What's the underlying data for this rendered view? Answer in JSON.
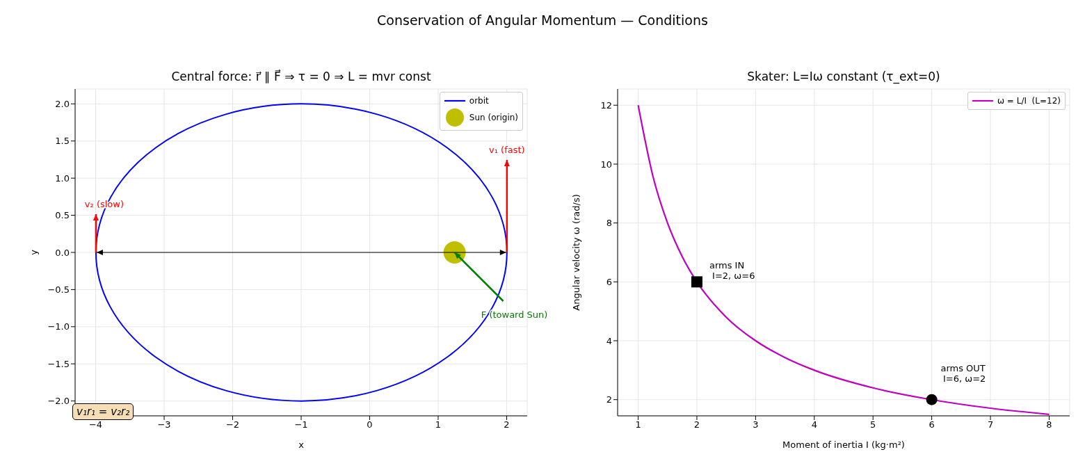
{
  "chart_data": [
    {
      "type": "other",
      "title": "Conservation of Angular Momentum — Conditions"
    },
    {
      "type": "line",
      "title": "Central force: r⃗ ∥ F⃗ ⇒ τ = 0 ⇒ L = mvr const",
      "xlabel": "x",
      "ylabel": "y",
      "xlim": [
        -4.3,
        2.3
      ],
      "ylim": [
        -2.2,
        2.2
      ],
      "xticks": [
        {
          "value": -4,
          "label": "−4"
        },
        {
          "value": -3,
          "label": "−3"
        },
        {
          "value": -2,
          "label": "−2"
        },
        {
          "value": -1,
          "label": "−1"
        },
        0,
        1,
        2
      ],
      "yticks": [
        {
          "value": -2,
          "label": "−2.0"
        },
        {
          "value": -1.5,
          "label": "−1.5"
        },
        {
          "value": -1,
          "label": "−1.0"
        },
        {
          "value": -0.5,
          "label": "−0.5"
        },
        {
          "value": 0,
          "label": "0.0"
        },
        {
          "value": 0.5,
          "label": "0.5"
        },
        {
          "value": 1,
          "label": "1.0"
        },
        {
          "value": 1.5,
          "label": "1.5"
        },
        {
          "value": 2,
          "label": "2.0"
        }
      ],
      "grid": true,
      "legend": "top right",
      "series": [
        {
          "name": "orbit",
          "type": "line",
          "color": "#0000ff"
        },
        {
          "name": "Sun (origin)",
          "type": "scatter",
          "color": "#bfbf00",
          "marker": "circle",
          "x": [
            1.24
          ],
          "values": [
            0
          ]
        }
      ],
      "annotations": [
        "v₁r₁ = v₂r₂",
        "v₁ (fast)",
        "v₂ (slow)",
        {
          "text": "F (toward Sun)",
          "x": 1.24,
          "y": 0
        }
      ]
    },
    {
      "type": "line",
      "title": "Skater: L=Iω constant (τ_ext=0)",
      "xlabel": "Moment of inertia I (kg·m²)",
      "ylabel": "Angular velocity ω (rad/s)",
      "xlim": [
        0.65,
        8.35
      ],
      "ylim": [
        1.45,
        12.55
      ],
      "xticks": [
        1,
        2,
        3,
        4,
        5,
        6,
        7,
        8
      ],
      "yticks": [
        2,
        4,
        6,
        8,
        10,
        12
      ],
      "grid": true,
      "legend": "top right",
      "series": [
        {
          "name": "ω = L/I  (L=12)",
          "type": "line",
          "color": "#bf00bf",
          "marker": "none",
          "x": [
            1,
            1.25,
            1.5,
            1.75,
            2,
            2.5,
            3,
            3.5,
            4,
            5,
            6,
            7,
            8
          ],
          "values": [
            12,
            9.6,
            8,
            6.86,
            6,
            4.8,
            4,
            3.43,
            3,
            2.4,
            2,
            1.71,
            1.5
          ]
        },
        {
          "type": "scatter",
          "color": "#000000",
          "marker": "square",
          "x": [
            2
          ],
          "values": [
            6
          ]
        },
        {
          "type": "scatter",
          "color": "#000000",
          "marker": "circle",
          "x": [
            6
          ],
          "values": [
            2
          ]
        }
      ],
      "annotations": [
        {
          "text": "arms IN\n I=2, ω=6",
          "x": 2,
          "y": 6
        },
        {
          "text": "arms OUT\n I=6, ω=2",
          "x": 6,
          "y": 2
        }
      ]
    }
  ]
}
